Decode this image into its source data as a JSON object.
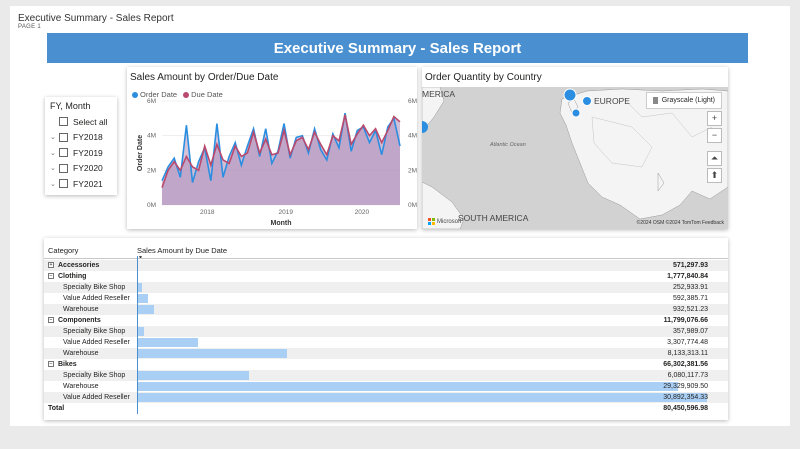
{
  "header": {
    "doc_title": "Executive Summary - Sales Report",
    "page_label": "PAGE 1",
    "banner": "Executive Summary - Sales Report"
  },
  "slicer": {
    "title": "FY, Month",
    "items": [
      {
        "label": "Select all",
        "expandable": false
      },
      {
        "label": "FY2018",
        "expandable": true
      },
      {
        "label": "FY2019",
        "expandable": true
      },
      {
        "label": "FY2020",
        "expandable": true
      },
      {
        "label": "FY2021",
        "expandable": true
      }
    ]
  },
  "line_chart": {
    "title": "Sales Amount by Order/Due Date",
    "legend": [
      "Order Date",
      "Due Date"
    ],
    "colors": {
      "order": "#2b8ee0",
      "due": "#b94a6e",
      "fill": "#b293bd"
    }
  },
  "chart_data": {
    "type": "area",
    "title": "Sales Amount by Order/Due Date",
    "xlabel": "Month",
    "ylabel": "Order Date",
    "y_ticks_left": [
      "0M",
      "2M",
      "4M",
      "6M"
    ],
    "y_ticks_right": [
      "0M",
      "2M",
      "4M",
      "6M"
    ],
    "x_ticks": [
      "2018",
      "2019",
      "2020"
    ],
    "ylim": [
      0,
      6
    ],
    "series": [
      {
        "name": "Order Date",
        "values": [
          1.4,
          2.2,
          2.7,
          1.6,
          4.6,
          1.3,
          2.5,
          3.3,
          1.4,
          4.7,
          1.6,
          2.8,
          3.6,
          2.3,
          3.4,
          4.4,
          2.8,
          4.4,
          2.4,
          3.1,
          4.7,
          2.7,
          3.9,
          4.0,
          3.0,
          4.4,
          3.2,
          2.6,
          4.1,
          3.3,
          5.3,
          3.1,
          4.3,
          4.5,
          3.6,
          4.3,
          2.9,
          4.5,
          5.0,
          3.4
        ]
      },
      {
        "name": "Due Date",
        "values": [
          1.0,
          2.0,
          2.5,
          2.0,
          2.8,
          2.2,
          2.0,
          3.4,
          2.3,
          3.5,
          2.6,
          2.4,
          3.4,
          2.8,
          3.0,
          4.2,
          3.0,
          3.8,
          2.9,
          3.0,
          4.3,
          2.9,
          3.7,
          3.9,
          3.2,
          4.2,
          3.5,
          2.9,
          4.0,
          3.7,
          5.2,
          3.5,
          4.1,
          4.6,
          4.0,
          4.4,
          3.6,
          4.3,
          5.1,
          4.8
        ]
      }
    ]
  },
  "map": {
    "title": "Order Quantity by Country",
    "style_button": "Grayscale (Light)",
    "labels": {
      "europe": "EUROPE",
      "america": "MERICA",
      "south_america": "SOUTH AMERICA",
      "ocean": "Atlantic Ocean",
      "ms": "Microsoft"
    },
    "attribution": "©2024 OSM ©2024 TomTom Feedback",
    "bubble_color": "#2b8ee0"
  },
  "table": {
    "col_category": "Category",
    "col_bar": "Sales Amount by Due Date",
    "max_value": 30892354.33,
    "rows": [
      {
        "label": "Accessories",
        "value": "571,297.93",
        "num": 571297.93,
        "level": 1,
        "bold": true,
        "expand": "+"
      },
      {
        "label": "Clothing",
        "value": "1,777,840.84",
        "num": 1777840.84,
        "level": 1,
        "bold": true,
        "expand": "−"
      },
      {
        "label": "Specialty Bike Shop",
        "value": "252,933.91",
        "num": 252933.91,
        "level": 2
      },
      {
        "label": "Value Added Reseller",
        "value": "592,385.71",
        "num": 592385.71,
        "level": 2
      },
      {
        "label": "Warehouse",
        "value": "932,521.23",
        "num": 932521.23,
        "level": 2
      },
      {
        "label": "Components",
        "value": "11,799,076.66",
        "num": 11799076.66,
        "level": 1,
        "bold": true,
        "expand": "−"
      },
      {
        "label": "Specialty Bike Shop",
        "value": "357,989.07",
        "num": 357989.07,
        "level": 2
      },
      {
        "label": "Value Added Reseller",
        "value": "3,307,774.48",
        "num": 3307774.48,
        "level": 2
      },
      {
        "label": "Warehouse",
        "value": "8,133,313.11",
        "num": 8133313.11,
        "level": 2
      },
      {
        "label": "Bikes",
        "value": "66,302,381.56",
        "num": 66302381.56,
        "level": 1,
        "bold": true,
        "expand": "−"
      },
      {
        "label": "Specialty Bike Shop",
        "value": "6,080,117.73",
        "num": 6080117.73,
        "level": 2
      },
      {
        "label": "Warehouse",
        "value": "29,329,909.50",
        "num": 29329909.5,
        "level": 2
      },
      {
        "label": "Value Added Reseller",
        "value": "30,892,354.33",
        "num": 30892354.33,
        "level": 2
      },
      {
        "label": "Total",
        "value": "80,450,596.98",
        "num": 80450596.98,
        "level": 1,
        "bold": true,
        "total": true
      }
    ]
  }
}
